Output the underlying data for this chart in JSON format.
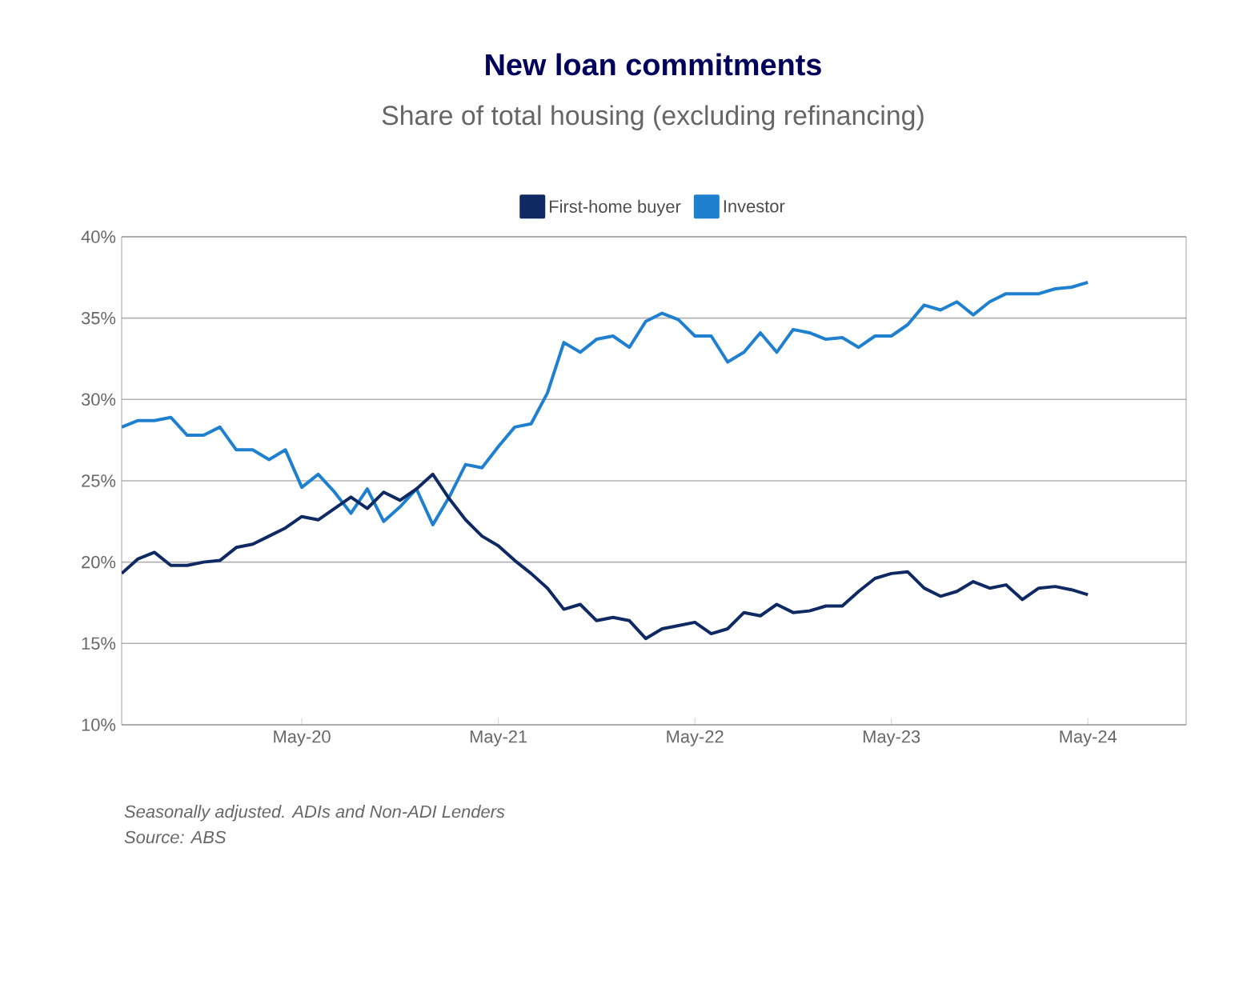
{
  "chart_data": {
    "type": "line",
    "title": "New loan commitments",
    "subtitle": "Share of total housing (excluding refinancing)",
    "annotations": [
      "Seasonally adjusted. ADIs and Non-ADI Lenders",
      "Source: ABS"
    ],
    "x": [
      "2019-06",
      "2019-07",
      "2019-08",
      "2019-09",
      "2019-10",
      "2019-11",
      "2019-12",
      "2020-01",
      "2020-02",
      "2020-03",
      "2020-04",
      "2020-05",
      "2020-06",
      "2020-07",
      "2020-08",
      "2020-09",
      "2020-10",
      "2020-11",
      "2020-12",
      "2021-01",
      "2021-02",
      "2021-03",
      "2021-04",
      "2021-05",
      "2021-06",
      "2021-07",
      "2021-08",
      "2021-09",
      "2021-10",
      "2021-11",
      "2021-12",
      "2022-01",
      "2022-02",
      "2022-03",
      "2022-04",
      "2022-05",
      "2022-06",
      "2022-07",
      "2022-08",
      "2022-09",
      "2022-10",
      "2022-11",
      "2022-12",
      "2023-01",
      "2023-02",
      "2023-03",
      "2023-04",
      "2023-05",
      "2023-06",
      "2023-07",
      "2023-08",
      "2023-09",
      "2023-10",
      "2023-11",
      "2023-12",
      "2024-01",
      "2024-02",
      "2024-03",
      "2024-04",
      "2024-05"
    ],
    "series": [
      {
        "name": "First-home buyer",
        "color": "#0f2a63",
        "values": [
          19.3,
          20.2,
          20.6,
          19.8,
          19.8,
          20.0,
          20.1,
          20.9,
          21.1,
          21.6,
          22.1,
          22.8,
          22.6,
          23.3,
          24.0,
          23.3,
          24.3,
          23.8,
          24.5,
          25.4,
          23.9,
          22.6,
          21.6,
          21.0,
          20.1,
          19.3,
          18.4,
          17.1,
          17.4,
          16.4,
          16.6,
          16.4,
          15.3,
          15.9,
          16.1,
          16.3,
          15.6,
          15.9,
          16.9,
          16.7,
          17.4,
          16.9,
          17.0,
          17.3,
          17.3,
          18.2,
          19.0,
          19.3,
          19.4,
          18.4,
          17.9,
          18.2,
          18.8,
          18.4,
          18.6,
          17.7,
          18.4,
          18.5,
          18.3,
          18.0
        ]
      },
      {
        "name": "Investor",
        "color": "#1f80cf",
        "values": [
          28.3,
          28.7,
          28.7,
          28.9,
          27.8,
          27.8,
          28.3,
          26.9,
          26.9,
          26.3,
          26.9,
          24.6,
          25.4,
          24.3,
          23.0,
          24.5,
          22.5,
          23.4,
          24.5,
          22.3,
          24.0,
          26.0,
          25.8,
          27.1,
          28.3,
          28.5,
          30.4,
          33.5,
          32.9,
          33.7,
          33.9,
          33.2,
          34.8,
          35.3,
          34.9,
          33.9,
          33.9,
          32.3,
          32.9,
          34.1,
          32.9,
          34.3,
          34.1,
          33.7,
          33.8,
          33.2,
          33.9,
          33.9,
          34.6,
          35.8,
          35.5,
          36.0,
          35.2,
          36.0,
          36.5,
          36.5,
          36.5,
          36.8,
          36.9,
          37.2
        ]
      }
    ],
    "xlim": [
      "2019-06",
      "2024-11"
    ],
    "xticks": [
      {
        "value": "2020-05",
        "label": "May-20"
      },
      {
        "value": "2021-05",
        "label": "May-21"
      },
      {
        "value": "2022-05",
        "label": "May-22"
      },
      {
        "value": "2023-05",
        "label": "May-23"
      },
      {
        "value": "2024-05",
        "label": "May-24"
      }
    ],
    "ylim": [
      10,
      40
    ],
    "yticks": [
      {
        "value": 10,
        "label": "10%"
      },
      {
        "value": 15,
        "label": "15%"
      },
      {
        "value": 20,
        "label": "20%"
      },
      {
        "value": 25,
        "label": "25%"
      },
      {
        "value": 30,
        "label": "30%"
      },
      {
        "value": 35,
        "label": "35%"
      },
      {
        "value": 40,
        "label": "40%"
      }
    ],
    "grid": "y",
    "legend": "top",
    "line_style": "solid"
  }
}
